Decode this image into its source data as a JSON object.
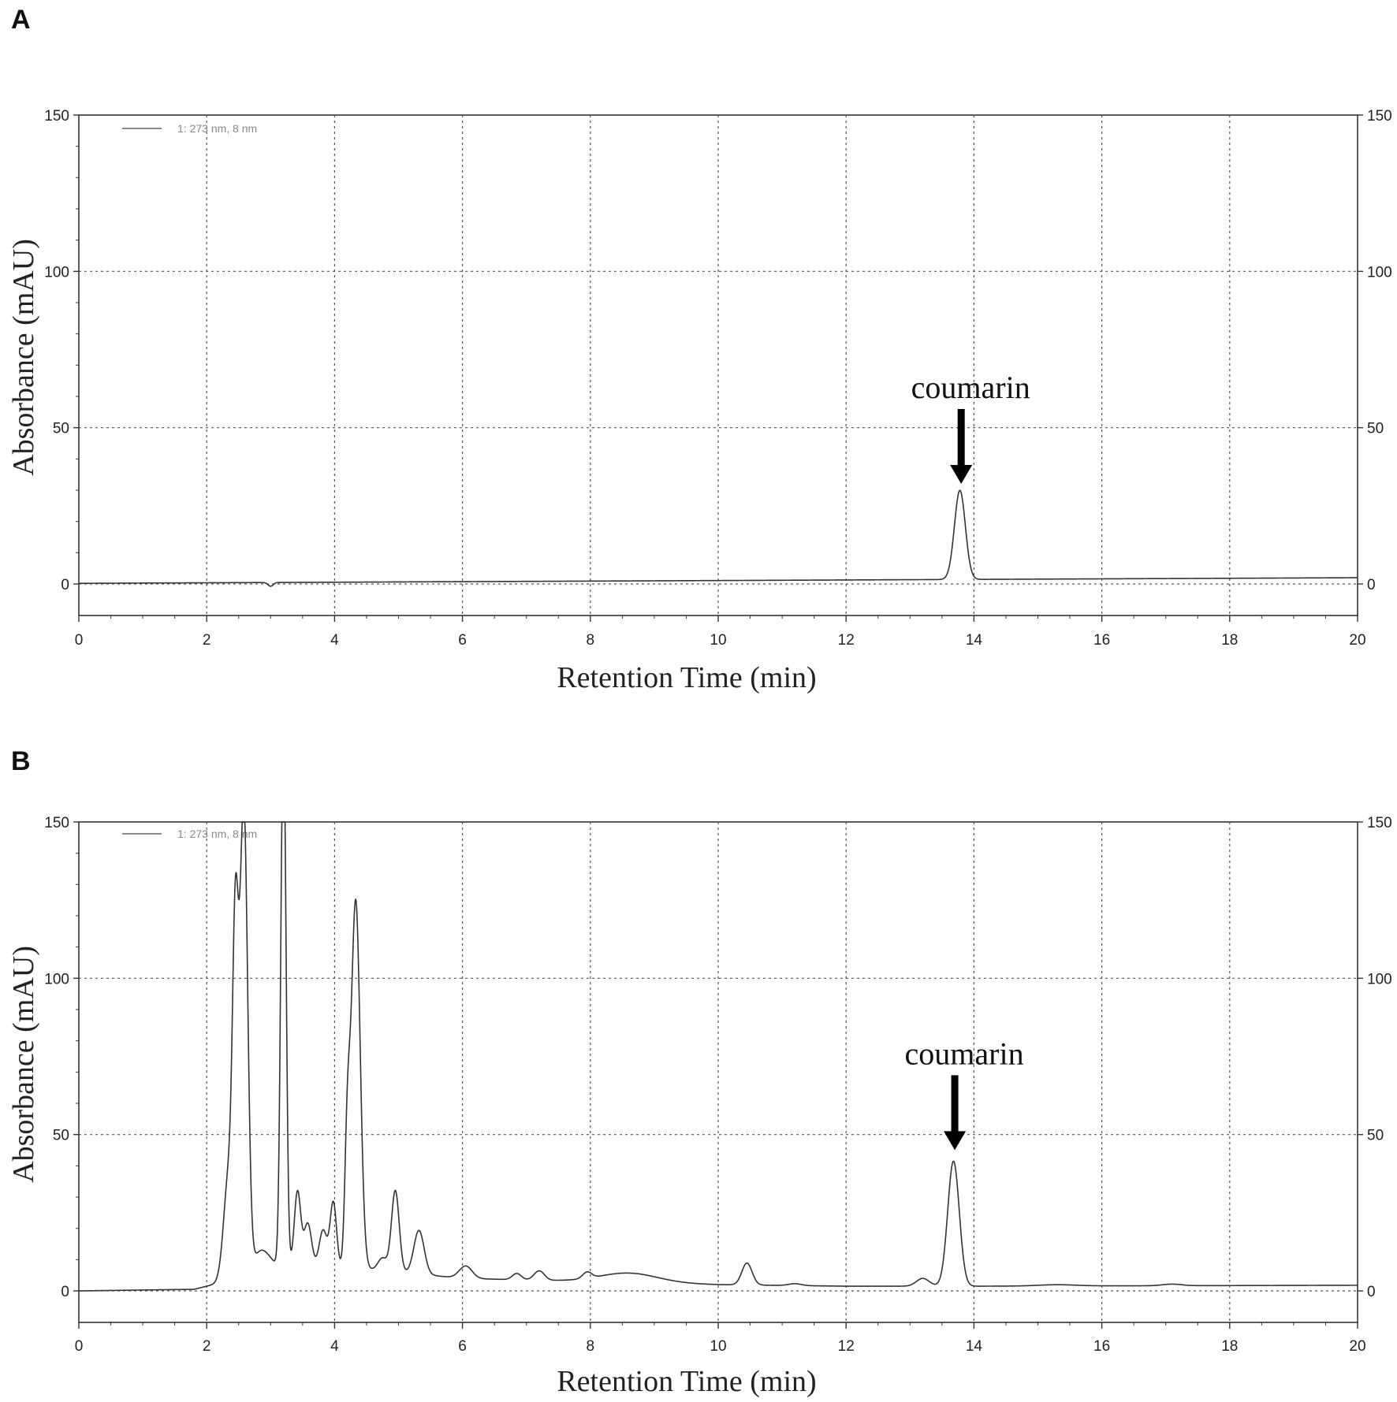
{
  "chart_data": [
    {
      "type": "line",
      "panel_label": "A",
      "legend": "1: 273 nm, 8 nm",
      "xlabel": "Retention Time (min)",
      "ylabel": "Absorbance (mAU)",
      "xlim": [
        0,
        20
      ],
      "ylim": [
        -10,
        150
      ],
      "xticks": [
        "0",
        "2",
        "4",
        "6",
        "8",
        "10",
        "12",
        "14",
        "16",
        "18",
        "20"
      ],
      "yticks": [
        "0",
        "50",
        "100",
        "150"
      ],
      "yticks_right": [
        "0",
        "50",
        "100",
        "150"
      ],
      "grid": true,
      "annotation": {
        "text": "coumarin",
        "x": 13.8,
        "y": 29
      },
      "series": [
        {
          "baseline": [
            [
              0,
              0.2
            ],
            [
              20,
              2.0
            ]
          ],
          "peaks": [
            [
              3.0,
              -1.2,
              0.04
            ],
            [
              13.78,
              28.5,
              0.085
            ]
          ]
        }
      ]
    },
    {
      "type": "line",
      "panel_label": "B",
      "legend": "1: 273 nm, 8 nm",
      "xlabel": "Retention Time (min)",
      "ylabel": "Absorbance (mAU)",
      "xlim": [
        0,
        20
      ],
      "ylim": [
        -10,
        150
      ],
      "xticks": [
        "0",
        "2",
        "4",
        "6",
        "8",
        "10",
        "12",
        "14",
        "16",
        "18",
        "20"
      ],
      "yticks": [
        "0",
        "50",
        "100",
        "150"
      ],
      "yticks_right": [
        "0",
        "50",
        "100",
        "150"
      ],
      "grid": true,
      "annotation": {
        "text": "coumarin",
        "x": 13.7,
        "y": 42
      },
      "series": [
        {
          "baseline": [
            [
              0,
              0
            ],
            [
              1.8,
              0.5
            ],
            [
              2.2,
              2.5
            ],
            [
              3.0,
              8
            ],
            [
              4.5,
              7
            ],
            [
              6.0,
              4
            ],
            [
              8.0,
              3
            ],
            [
              10.0,
              2
            ],
            [
              12.0,
              1.5
            ],
            [
              14.0,
              1.5
            ],
            [
              20.0,
              1.8
            ]
          ],
          "peaks": [
            [
              2.35,
              35,
              0.08
            ],
            [
              2.45,
              98,
              0.045
            ],
            [
              2.58,
              150,
              0.06
            ],
            [
              2.85,
              6,
              0.12
            ],
            [
              3.2,
              175,
              0.04
            ],
            [
              3.42,
              24,
              0.05
            ],
            [
              3.58,
              14,
              0.06
            ],
            [
              3.82,
              12,
              0.06
            ],
            [
              3.98,
              21,
              0.05
            ],
            [
              4.2,
              38,
              0.04
            ],
            [
              4.33,
              118,
              0.07
            ],
            [
              4.75,
              4,
              0.07
            ],
            [
              4.95,
              26,
              0.06
            ],
            [
              5.32,
              14,
              0.08
            ],
            [
              6.05,
              4,
              0.1
            ],
            [
              6.85,
              2,
              0.07
            ],
            [
              7.2,
              3,
              0.08
            ],
            [
              7.95,
              2,
              0.07
            ],
            [
              8.6,
              3,
              0.45
            ],
            [
              10.45,
              7,
              0.08
            ],
            [
              11.2,
              0.6,
              0.1
            ],
            [
              13.2,
              2.5,
              0.1
            ],
            [
              13.68,
              40,
              0.09
            ],
            [
              15.3,
              0.4,
              0.3
            ],
            [
              17.1,
              0.5,
              0.15
            ]
          ]
        }
      ]
    }
  ]
}
